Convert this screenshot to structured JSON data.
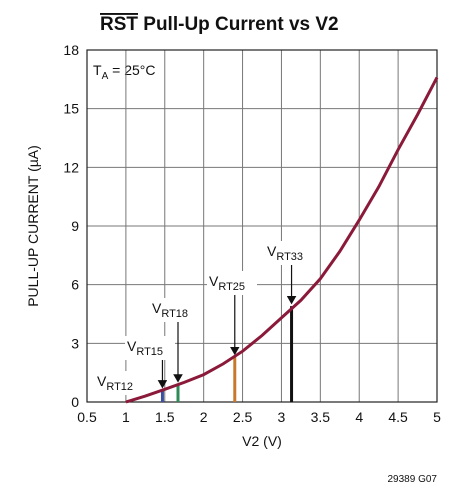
{
  "chart_data": {
    "type": "line",
    "title_over": "RST",
    "title_rest": " Pull-Up Current vs V2",
    "x_label": "V2 (V)",
    "y_label": "PULL-UP CURRENT (µA)",
    "xlim": [
      0.5,
      5
    ],
    "xticks": [
      0.5,
      1,
      1.5,
      2,
      2.5,
      3,
      3.5,
      4,
      4.5,
      5
    ],
    "ylim": [
      0,
      18
    ],
    "yticks": [
      0,
      3,
      6,
      9,
      12,
      15,
      18
    ],
    "grid": true,
    "series": [
      {
        "name": "pull-up current",
        "color": "#8b1a3a",
        "x": [
          1,
          1.25,
          1.5,
          1.75,
          2,
          2.25,
          2.5,
          2.75,
          3,
          3.25,
          3.5,
          3.75,
          4,
          4.25,
          4.5,
          4.75,
          5
        ],
        "values": [
          0,
          0.3,
          0.65,
          1.0,
          1.4,
          1.95,
          2.6,
          3.4,
          4.3,
          5.2,
          6.3,
          7.7,
          9.3,
          11.0,
          12.9,
          14.7,
          16.6
        ]
      }
    ],
    "markers": [
      {
        "main": "V",
        "sub": "RT12"
      },
      {
        "main": "V",
        "sub": "RT15",
        "x": 1.47,
        "value": 0.6,
        "color": "#3b4fa0"
      },
      {
        "main": "V",
        "sub": "RT18",
        "x": 1.67,
        "value": 0.9,
        "color": "#2e8b57"
      },
      {
        "main": "V",
        "sub": "RT25",
        "x": 2.4,
        "value": 2.3,
        "color": "#c8782a"
      },
      {
        "main": "V",
        "sub": "RT33",
        "x": 3.13,
        "value": 4.9,
        "color": "#111111"
      }
    ],
    "condition": {
      "main": "T",
      "sub": "A",
      "rest": " = 25°C"
    },
    "footnote": "29389 G07"
  }
}
